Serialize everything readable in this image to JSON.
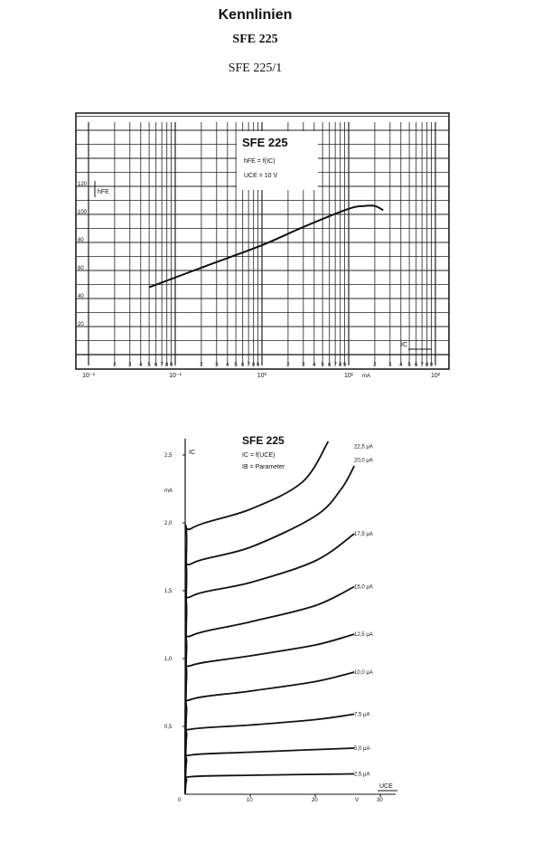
{
  "page": {
    "title": "Kennlinien",
    "subtitle": "SFE 225",
    "figure_label": "SFE 225/1"
  },
  "chart_data": [
    {
      "type": "line",
      "title": "SFE 225",
      "annotation_lines": [
        "hFE = f(IC)",
        "UCE = 10 V"
      ],
      "ylabel": "hFE",
      "xlabel": "IC",
      "x_unit": "mA",
      "x_scale": "log",
      "xlim": [
        0.01,
        100
      ],
      "ylim": [
        0,
        172
      ],
      "grid": true,
      "y_ticks": [
        20,
        40,
        60,
        80,
        100,
        120
      ],
      "y_tick_labels": [
        "20",
        "40",
        "60",
        "80",
        "100",
        "120"
      ],
      "x_tick_labels": [
        "10⁻²",
        "2",
        "3",
        "4",
        "5",
        "6",
        "7",
        "8",
        "9",
        "10⁻¹",
        "2",
        "3",
        "4",
        "5",
        "6",
        "7",
        "8",
        "9",
        "10⁰",
        "2",
        "3",
        "4",
        "5",
        "6",
        "7",
        "8",
        "9",
        "10¹",
        "2",
        "3",
        "4",
        "5",
        "6",
        "7",
        "8",
        "9",
        "10²"
      ],
      "series": [
        {
          "x": [
            0.05,
            0.1,
            0.3,
            1,
            3,
            10,
            15,
            20,
            25
          ],
          "y": [
            48,
            55,
            66,
            78,
            91,
            104,
            106,
            106,
            103
          ]
        }
      ]
    },
    {
      "type": "line",
      "title": "SFE 225",
      "annotation_lines": [
        "IC = f(UCE)",
        "IB = Parameter"
      ],
      "ylabel": "IC",
      "y_unit": "mA",
      "xlabel": "UCE",
      "x_unit": "V",
      "xlim": [
        0,
        32
      ],
      "ylim": [
        0,
        2.65
      ],
      "grid": false,
      "x_ticks": [
        0,
        10,
        20,
        30
      ],
      "x_tick_labels": [
        "0",
        "10",
        "20",
        "30"
      ],
      "y_ticks": [
        0.5,
        1.0,
        1.5,
        2.0,
        2.5
      ],
      "y_tick_labels": [
        "0,5",
        "1,0",
        "1,5",
        "2,0",
        "2,5"
      ],
      "series": [
        {
          "name": "2,5 µA",
          "x": [
            0,
            0.2,
            1,
            10,
            26
          ],
          "y": [
            0,
            0.1,
            0.13,
            0.14,
            0.15
          ]
        },
        {
          "name": "5,0 µA",
          "x": [
            0,
            0.2,
            1,
            10,
            26
          ],
          "y": [
            0,
            0.24,
            0.29,
            0.31,
            0.34
          ]
        },
        {
          "name": "7,5 µA",
          "x": [
            0,
            0.2,
            1,
            10,
            20,
            26
          ],
          "y": [
            0,
            0.42,
            0.48,
            0.51,
            0.55,
            0.59
          ]
        },
        {
          "name": "10,0 µA",
          "x": [
            0,
            0.2,
            1,
            10,
            20,
            26
          ],
          "y": [
            0,
            0.6,
            0.7,
            0.76,
            0.83,
            0.9
          ]
        },
        {
          "name": "12,5 µA",
          "x": [
            0,
            0.2,
            1,
            10,
            20,
            26
          ],
          "y": [
            0,
            0.85,
            0.95,
            1.02,
            1.1,
            1.18
          ]
        },
        {
          "name": "15,0 µA",
          "x": [
            0,
            0.2,
            1,
            10,
            20,
            26
          ],
          "y": [
            0,
            1.05,
            1.17,
            1.27,
            1.39,
            1.53
          ]
        },
        {
          "name": "17,5 µA",
          "x": [
            0,
            0.2,
            1,
            10,
            20,
            26
          ],
          "y": [
            0,
            1.3,
            1.46,
            1.56,
            1.72,
            1.92
          ]
        },
        {
          "name": "20,0 µA",
          "x": [
            0,
            0.2,
            1,
            10,
            20,
            24,
            26
          ],
          "y": [
            0,
            1.55,
            1.7,
            1.82,
            2.05,
            2.25,
            2.42
          ]
        },
        {
          "name": "22,5 µA",
          "x": [
            0,
            0.2,
            1,
            10,
            18,
            22
          ],
          "y": [
            0,
            1.8,
            1.96,
            2.1,
            2.3,
            2.6
          ]
        }
      ]
    }
  ]
}
